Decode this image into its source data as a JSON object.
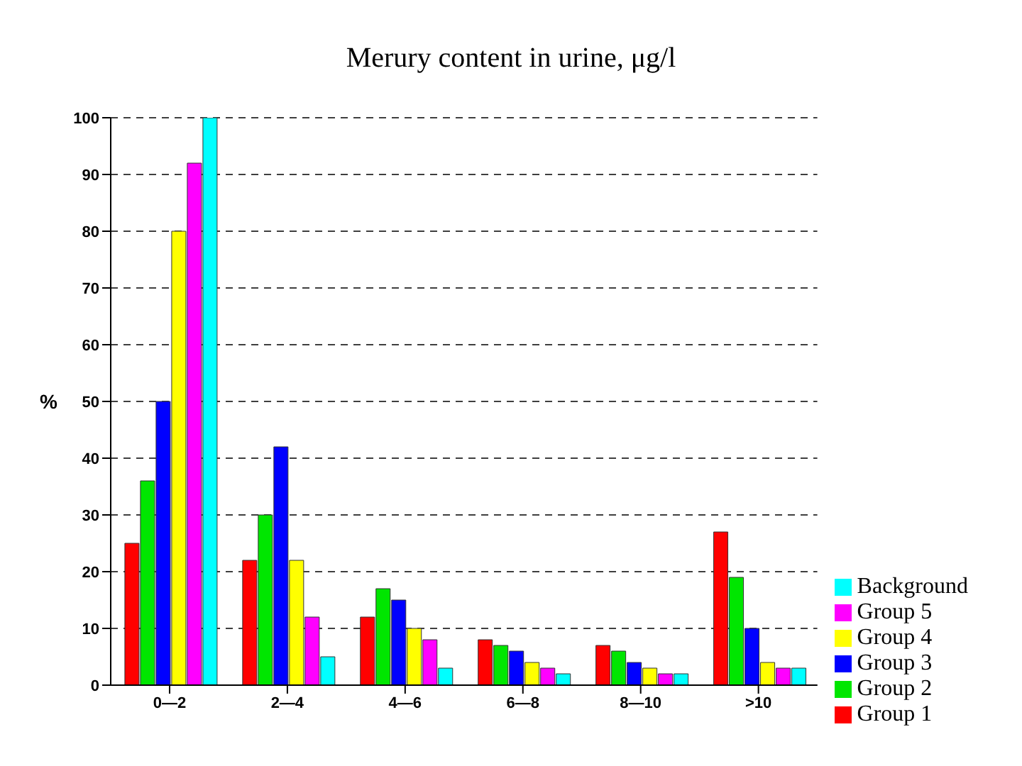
{
  "chart_data": {
    "type": "bar",
    "title": "Merury content in urine, μg/l",
    "ylabel": "%",
    "categories": [
      "0—2",
      "2—4",
      "4—6",
      "6—8",
      "8—10",
      ">10"
    ],
    "series": [
      {
        "name": "Group 1",
        "color": "#ff0000",
        "values": [
          25,
          22,
          12,
          8,
          7,
          27
        ]
      },
      {
        "name": "Group 2",
        "color": "#00e600",
        "values": [
          36,
          30,
          17,
          7,
          6,
          19
        ]
      },
      {
        "name": "Group 3",
        "color": "#0000ff",
        "values": [
          50,
          42,
          15,
          6,
          4,
          10
        ]
      },
      {
        "name": "Group 4",
        "color": "#ffff00",
        "values": [
          80,
          22,
          10,
          4,
          3,
          4
        ]
      },
      {
        "name": "Group 5",
        "color": "#ff00ff",
        "values": [
          92,
          12,
          8,
          3,
          2,
          3
        ]
      },
      {
        "name": "Background",
        "color": "#00ffff",
        "values": [
          100,
          5,
          3,
          2,
          2,
          3
        ]
      }
    ],
    "ylim": [
      0,
      100
    ],
    "yticks": [
      0,
      10,
      20,
      30,
      40,
      50,
      60,
      70,
      80,
      90,
      100
    ],
    "grid": "y",
    "legend": "bottom right"
  }
}
